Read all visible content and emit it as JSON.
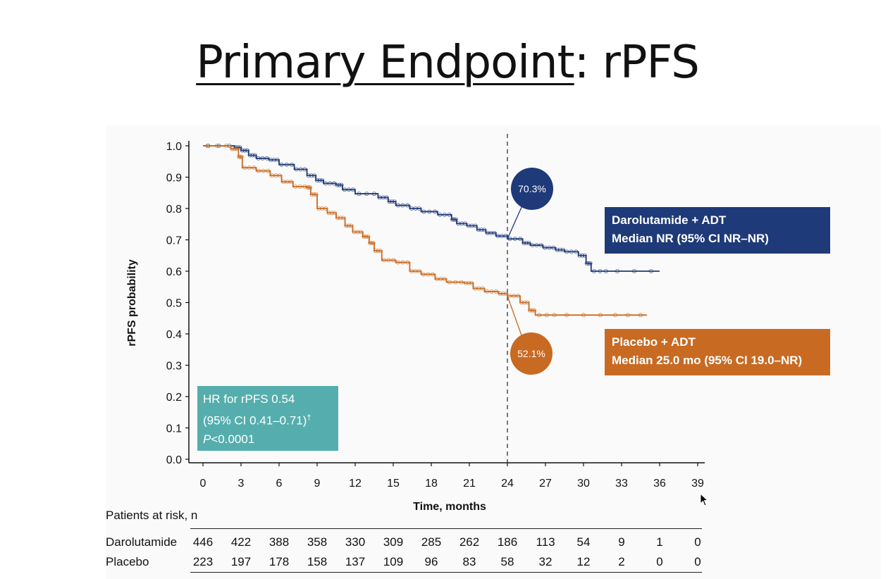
{
  "slide": {
    "title_underlined": "Primary Endpoint",
    "title_rest": ": rPFS"
  },
  "chart_data": {
    "type": "line",
    "xlabel": "Time, months",
    "ylabel": "rPFS probability",
    "xlim": [
      0,
      39
    ],
    "ylim": [
      0,
      1
    ],
    "x_ticks": [
      0,
      3,
      6,
      9,
      12,
      15,
      18,
      21,
      24,
      27,
      30,
      33,
      36,
      39
    ],
    "y_ticks": [
      "0.0",
      "0.1",
      "0.2",
      "0.3",
      "0.4",
      "0.5",
      "0.6",
      "0.7",
      "0.8",
      "0.9",
      "1.0"
    ],
    "reference_line_x": 24,
    "series": [
      {
        "name": "Darolutamide + ADT",
        "color": "#1f3a78",
        "points": [
          [
            0,
            1.0
          ],
          [
            2.5,
            0.995
          ],
          [
            3,
            0.985
          ],
          [
            3.6,
            0.97
          ],
          [
            4.2,
            0.96
          ],
          [
            5.2,
            0.955
          ],
          [
            6,
            0.94
          ],
          [
            7.2,
            0.925
          ],
          [
            8.2,
            0.905
          ],
          [
            8.9,
            0.89
          ],
          [
            9.5,
            0.88
          ],
          [
            10.5,
            0.875
          ],
          [
            11,
            0.86
          ],
          [
            12,
            0.847
          ],
          [
            13.8,
            0.835
          ],
          [
            14.6,
            0.822
          ],
          [
            15.2,
            0.81
          ],
          [
            16.3,
            0.8
          ],
          [
            17.2,
            0.79
          ],
          [
            18.5,
            0.78
          ],
          [
            19.6,
            0.765
          ],
          [
            20,
            0.752
          ],
          [
            20.8,
            0.745
          ],
          [
            21.6,
            0.732
          ],
          [
            22.3,
            0.722
          ],
          [
            23.1,
            0.712
          ],
          [
            24,
            0.703
          ],
          [
            25.2,
            0.69
          ],
          [
            25.8,
            0.683
          ],
          [
            26.8,
            0.675
          ],
          [
            27.8,
            0.668
          ],
          [
            28.5,
            0.662
          ],
          [
            29.6,
            0.65
          ],
          [
            30.2,
            0.625
          ],
          [
            30.6,
            0.6
          ],
          [
            32,
            0.6
          ],
          [
            36,
            0.6
          ]
        ],
        "end_label": "70.3%",
        "end_value": 0.703
      },
      {
        "name": "Placebo + ADT",
        "color": "#c86a22",
        "points": [
          [
            0,
            1.0
          ],
          [
            2.2,
            0.99
          ],
          [
            2.8,
            0.965
          ],
          [
            3.1,
            0.93
          ],
          [
            4.2,
            0.92
          ],
          [
            5.3,
            0.905
          ],
          [
            6.2,
            0.885
          ],
          [
            7.1,
            0.87
          ],
          [
            8.2,
            0.867
          ],
          [
            8.5,
            0.845
          ],
          [
            9,
            0.8
          ],
          [
            9.8,
            0.786
          ],
          [
            10.5,
            0.77
          ],
          [
            11.2,
            0.745
          ],
          [
            11.8,
            0.725
          ],
          [
            12.6,
            0.71
          ],
          [
            13.1,
            0.69
          ],
          [
            13.5,
            0.665
          ],
          [
            14.1,
            0.635
          ],
          [
            15.2,
            0.628
          ],
          [
            16.3,
            0.6
          ],
          [
            17.2,
            0.59
          ],
          [
            18.3,
            0.575
          ],
          [
            19.2,
            0.565
          ],
          [
            20.6,
            0.562
          ],
          [
            21.3,
            0.545
          ],
          [
            22.2,
            0.535
          ],
          [
            23.3,
            0.528
          ],
          [
            24,
            0.521
          ],
          [
            25,
            0.5
          ],
          [
            25.7,
            0.475
          ],
          [
            26.2,
            0.46
          ],
          [
            28,
            0.46
          ],
          [
            32,
            0.46
          ],
          [
            35,
            0.46
          ]
        ],
        "end_label": "52.1%",
        "end_value": 0.521
      }
    ],
    "legend": [
      {
        "line1": "Darolutamide + ADT",
        "line2": "Median NR (95% CI NR–NR)"
      },
      {
        "line1": "Placebo + ADT",
        "line2": "Median 25.0 mo (95% CI 19.0–NR)"
      }
    ],
    "annotation": {
      "line1": "HR for rPFS 0.54",
      "line2": "(95% CI 0.41–0.71)",
      "line2_sup": "†",
      "line3_italic": "P",
      "line3_rest": "<0.0001"
    }
  },
  "risk_table": {
    "title": "Patients at risk, n",
    "rows": [
      {
        "label": "Darolutamide",
        "values": [
          "446",
          "422",
          "388",
          "358",
          "330",
          "309",
          "285",
          "262",
          "186",
          "113",
          "54",
          "9",
          "1",
          "0"
        ]
      },
      {
        "label": "Placebo",
        "values": [
          "223",
          "197",
          "178",
          "158",
          "137",
          "109",
          "96",
          "83",
          "58",
          "32",
          "12",
          "2",
          "0",
          "0"
        ]
      }
    ]
  },
  "colors": {
    "darolutamide": "#1f3a78",
    "placebo": "#c86a22",
    "hr_box": "#55aead"
  }
}
